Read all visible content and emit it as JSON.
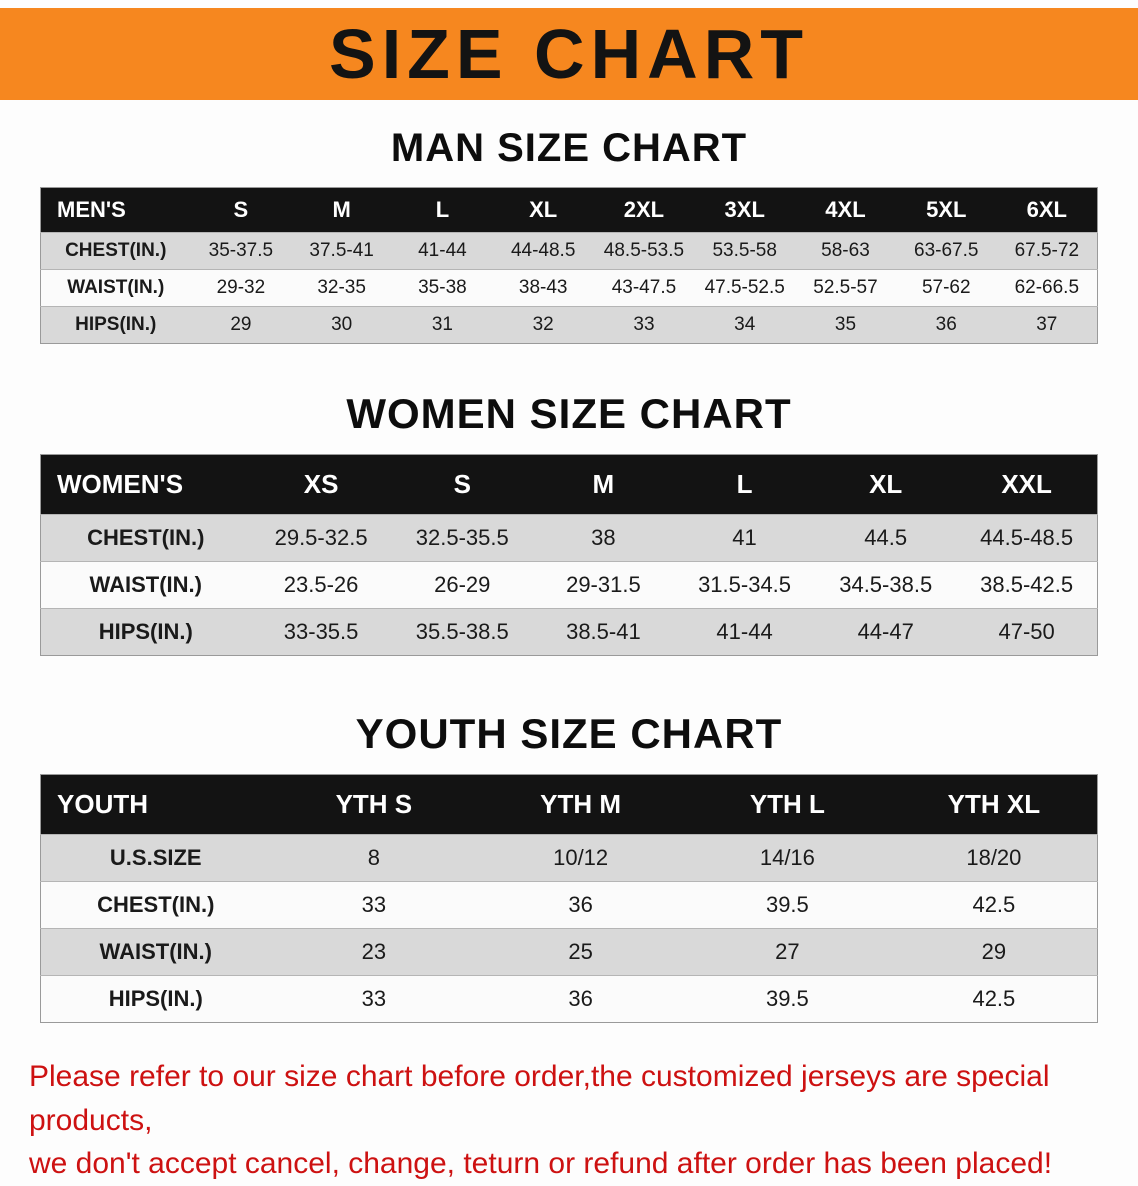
{
  "banner": {
    "title": "SIZE CHART"
  },
  "colors": {
    "banner_bg": "#f6871f",
    "header_bar": "#131313",
    "row_stripe": "#d9d9d9",
    "footnote_red": "#cd1111"
  },
  "sections": [
    {
      "id": "men",
      "heading": "MAN SIZE CHART",
      "table": {
        "header": [
          "MEN'S",
          "S",
          "M",
          "L",
          "XL",
          "2XL",
          "3XL",
          "4XL",
          "5XL",
          "6XL"
        ],
        "rows": [
          {
            "label": "CHEST(IN.)",
            "values": [
              "35-37.5",
              "37.5-41",
              "41-44",
              "44-48.5",
              "48.5-53.5",
              "53.5-58",
              "58-63",
              "63-67.5",
              "67.5-72"
            ]
          },
          {
            "label": "WAIST(IN.)",
            "values": [
              "29-32",
              "32-35",
              "35-38",
              "38-43",
              "43-47.5",
              "47.5-52.5",
              "52.5-57",
              "57-62",
              "62-66.5"
            ]
          },
          {
            "label": "HIPS(IN.)",
            "values": [
              "29",
              "30",
              "31",
              "32",
              "33",
              "34",
              "35",
              "36",
              "37"
            ]
          }
        ]
      }
    },
    {
      "id": "women",
      "heading": "WOMEN SIZE CHART",
      "table": {
        "header": [
          "WOMEN'S",
          "XS",
          "S",
          "M",
          "L",
          "XL",
          "XXL"
        ],
        "rows": [
          {
            "label": "CHEST(IN.)",
            "values": [
              "29.5-32.5",
              "32.5-35.5",
              "38",
              "41",
              "44.5",
              "44.5-48.5"
            ]
          },
          {
            "label": "WAIST(IN.)",
            "values": [
              "23.5-26",
              "26-29",
              "29-31.5",
              "31.5-34.5",
              "34.5-38.5",
              "38.5-42.5"
            ]
          },
          {
            "label": "HIPS(IN.)",
            "values": [
              "33-35.5",
              "35.5-38.5",
              "38.5-41",
              "41-44",
              "44-47",
              "47-50"
            ]
          }
        ]
      }
    },
    {
      "id": "youth",
      "heading": "YOUTH SIZE CHART",
      "table": {
        "header": [
          "YOUTH",
          "YTH S",
          "YTH M",
          "YTH L",
          "YTH XL"
        ],
        "rows": [
          {
            "label": "U.S.SIZE",
            "values": [
              "8",
              "10/12",
              "14/16",
              "18/20"
            ]
          },
          {
            "label": "CHEST(IN.)",
            "values": [
              "33",
              "36",
              "39.5",
              "42.5"
            ]
          },
          {
            "label": "WAIST(IN.)",
            "values": [
              "23",
              "25",
              "27",
              "29"
            ]
          },
          {
            "label": "HIPS(IN.)",
            "values": [
              "33",
              "36",
              "39.5",
              "42.5"
            ]
          }
        ]
      }
    }
  ],
  "footnote": {
    "line1": "Please refer to our size chart before order,the customized jerseys are special products,",
    "line2": "we don't accept cancel, change, teturn or refund after order has been placed!"
  }
}
